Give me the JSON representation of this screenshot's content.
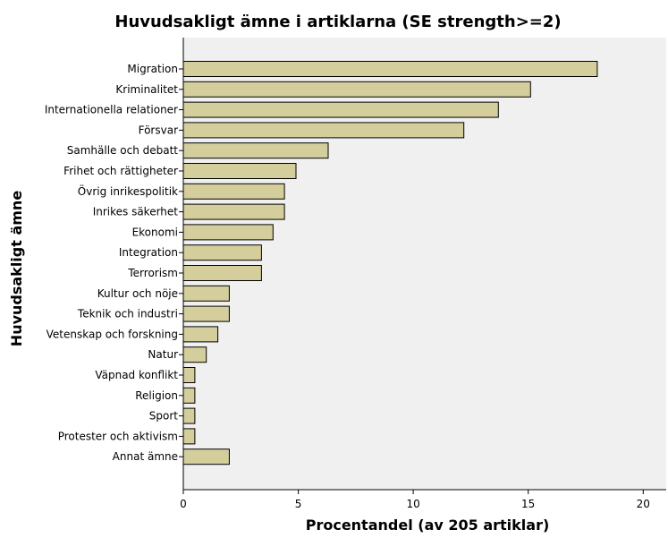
{
  "chart_data": {
    "type": "bar",
    "orientation": "horizontal",
    "title": "Huvudsakligt ämne i artiklarna (SE strength>=2)",
    "xlabel": "Procentandel (av 205 artiklar)",
    "ylabel": "Huvudsakligt ämne",
    "xlim": [
      0,
      21
    ],
    "xticks": [
      0,
      5,
      10,
      15,
      20
    ],
    "grid": false,
    "colors": {
      "bar_fill": "#d4ce9c",
      "bar_stroke": "#000000",
      "plot_bg": "#f0f0f0"
    },
    "categories": [
      "Migration",
      "Kriminalitet",
      "Internationella relationer",
      "Försvar",
      "Samhälle och debatt",
      "Frihet och rättigheter",
      "Övrig inrikespolitik",
      "Inrikes säkerhet",
      "Ekonomi",
      "Integration",
      "Terrorism",
      "Kultur och nöje",
      "Teknik och industri",
      "Vetenskap och forskning",
      "Natur",
      "Väpnad konflikt",
      "Religion",
      "Sport",
      "Protester och aktivism",
      "Annat ämne"
    ],
    "values": [
      18.0,
      15.1,
      13.7,
      12.2,
      6.3,
      4.9,
      4.4,
      4.4,
      3.9,
      3.4,
      3.4,
      2.0,
      2.0,
      1.5,
      1.0,
      0.5,
      0.5,
      0.5,
      0.5,
      2.0
    ]
  }
}
